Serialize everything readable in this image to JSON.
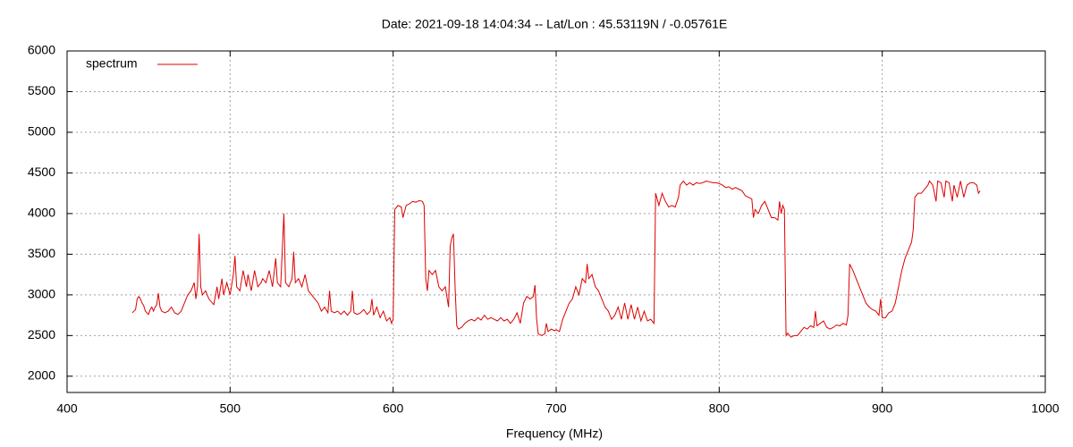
{
  "chart_data": {
    "type": "line",
    "title": "Date: 2021-09-18 14:04:34  --  Lat/Lon : 45.53119N / -0.05761E",
    "x_label": "Frequency (MHz)",
    "xlim": [
      400,
      1000
    ],
    "xticks": [
      400,
      500,
      600,
      700,
      800,
      900,
      1000
    ],
    "ylim": [
      1800,
      6000
    ],
    "yticks": [
      2000,
      2500,
      3000,
      3500,
      4000,
      4500,
      5000,
      5500,
      6000
    ],
    "grid": true,
    "legend": "top-left",
    "x": [
      440,
      441,
      442,
      443,
      444,
      445,
      446,
      447,
      448,
      449,
      450,
      451,
      452,
      453,
      454,
      455,
      456,
      457,
      458,
      460,
      462,
      464,
      466,
      468,
      470,
      472,
      474,
      476,
      478,
      479,
      480,
      481,
      482,
      483,
      485,
      487,
      490,
      492,
      493,
      495,
      496,
      498,
      500,
      502,
      503,
      504,
      506,
      508,
      510,
      511,
      513,
      515,
      517,
      519,
      520,
      522,
      524,
      526,
      528,
      529,
      531,
      533,
      534,
      536,
      538,
      539,
      540,
      542,
      544,
      546,
      548,
      550,
      552,
      554,
      556,
      558,
      560,
      561,
      562,
      564,
      566,
      568,
      570,
      572,
      574,
      575,
      576,
      578,
      580,
      582,
      584,
      586,
      587,
      588,
      590,
      592,
      594,
      596,
      598,
      599,
      600,
      601,
      603,
      605,
      606,
      608,
      610,
      612,
      614,
      616,
      618,
      619,
      620,
      621,
      622,
      624,
      626,
      628,
      630,
      632,
      634,
      635,
      636,
      637,
      638,
      639,
      640,
      642,
      644,
      646,
      648,
      650,
      652,
      654,
      656,
      658,
      660,
      662,
      664,
      666,
      668,
      670,
      672,
      674,
      676,
      678,
      680,
      682,
      684,
      686,
      687,
      688,
      689,
      691,
      693,
      694,
      695,
      697,
      699,
      700,
      702,
      704,
      706,
      708,
      710,
      712,
      714,
      716,
      718,
      719,
      720,
      722,
      724,
      726,
      728,
      730,
      732,
      734,
      736,
      738,
      740,
      742,
      744,
      746,
      748,
      750,
      752,
      754,
      756,
      758,
      760,
      761,
      763,
      765,
      767,
      769,
      771,
      773,
      775,
      776,
      778,
      780,
      782,
      784,
      786,
      788,
      790,
      792,
      794,
      796,
      798,
      800,
      802,
      804,
      806,
      808,
      810,
      812,
      814,
      816,
      818,
      820,
      821,
      822,
      824,
      826,
      828,
      830,
      832,
      834,
      836,
      837,
      838,
      839,
      840,
      841,
      842,
      844,
      846,
      848,
      850,
      852,
      854,
      856,
      858,
      859,
      860,
      862,
      864,
      866,
      868,
      870,
      872,
      874,
      876,
      878,
      879,
      880,
      882,
      884,
      886,
      888,
      890,
      892,
      894,
      896,
      898,
      899,
      900,
      902,
      904,
      906,
      908,
      910,
      912,
      914,
      916,
      918,
      919,
      920,
      922,
      924,
      926,
      928,
      929,
      931,
      933,
      934,
      936,
      938,
      939,
      941,
      943,
      944,
      946,
      948,
      950,
      952,
      954,
      956,
      958,
      959,
      960
    ],
    "series": [
      {
        "name": "spectrum",
        "color": "#dd0000",
        "values": [
          2780,
          2800,
          2820,
          2950,
          2980,
          2950,
          2900,
          2870,
          2800,
          2780,
          2760,
          2820,
          2850,
          2800,
          2850,
          2880,
          3020,
          2850,
          2800,
          2780,
          2800,
          2850,
          2780,
          2760,
          2800,
          2900,
          3000,
          3050,
          3150,
          2950,
          3100,
          3750,
          3100,
          3000,
          3050,
          2950,
          2880,
          3100,
          2950,
          3200,
          3000,
          3150,
          3000,
          3250,
          3480,
          3100,
          3050,
          3300,
          3100,
          3250,
          3050,
          3300,
          3100,
          3150,
          3200,
          3150,
          3300,
          3100,
          3450,
          3150,
          3100,
          4000,
          3150,
          3100,
          3200,
          3530,
          3150,
          3200,
          3100,
          3250,
          3050,
          3000,
          2950,
          2900,
          2800,
          2850,
          2780,
          3050,
          2800,
          2780,
          2800,
          2760,
          2800,
          2750,
          2800,
          3050,
          2780,
          2760,
          2780,
          2820,
          2760,
          2800,
          2950,
          2750,
          2850,
          2720,
          2800,
          2680,
          2720,
          2650,
          2700,
          4050,
          4100,
          4080,
          3950,
          4100,
          4120,
          4150,
          4140,
          4160,
          4150,
          4100,
          3200,
          3050,
          3300,
          3250,
          3300,
          3100,
          3050,
          3100,
          2850,
          3600,
          3700,
          3750,
          3100,
          2620,
          2580,
          2600,
          2650,
          2680,
          2700,
          2680,
          2720,
          2690,
          2750,
          2700,
          2720,
          2700,
          2680,
          2720,
          2680,
          2700,
          2650,
          2700,
          2780,
          2650,
          2900,
          2980,
          2950,
          2980,
          3120,
          2700,
          2520,
          2500,
          2520,
          2650,
          2550,
          2580,
          2560,
          2570,
          2550,
          2700,
          2800,
          2900,
          2950,
          3100,
          3000,
          3200,
          3150,
          3380,
          3200,
          3250,
          3100,
          3050,
          2950,
          2850,
          2800,
          2700,
          2750,
          2850,
          2700,
          2900,
          2700,
          2880,
          2700,
          2850,
          2680,
          2800,
          2680,
          2700,
          2650,
          4250,
          4100,
          4250,
          4150,
          4080,
          4100,
          4080,
          4200,
          4350,
          4400,
          4350,
          4380,
          4350,
          4380,
          4370,
          4380,
          4400,
          4390,
          4380,
          4380,
          4370,
          4350,
          4320,
          4330,
          4300,
          4320,
          4300,
          4280,
          4220,
          4200,
          4180,
          3950,
          4050,
          4000,
          4100,
          4150,
          4050,
          3950,
          3950,
          3920,
          4150,
          4000,
          4100,
          4050,
          2500,
          2530,
          2480,
          2500,
          2500,
          2550,
          2600,
          2580,
          2620,
          2600,
          2800,
          2620,
          2650,
          2680,
          2600,
          2580,
          2600,
          2630,
          2620,
          2650,
          2630,
          2750,
          3380,
          3300,
          3200,
          3100,
          3000,
          2900,
          2850,
          2820,
          2800,
          2750,
          2950,
          2720,
          2720,
          2780,
          2800,
          2900,
          3100,
          3300,
          3450,
          3550,
          3650,
          3800,
          4200,
          4250,
          4250,
          4300,
          4350,
          4400,
          4350,
          4150,
          4400,
          4380,
          4200,
          4400,
          4380,
          4150,
          4350,
          4200,
          4400,
          4200,
          4350,
          4380,
          4380,
          4350,
          4250,
          4280
        ]
      }
    ]
  }
}
